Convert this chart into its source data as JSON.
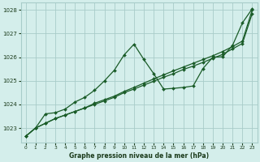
{
  "title": "Graphe pression niveau de la mer (hPa)",
  "background_color": "#d4eeeb",
  "grid_color": "#a8ccc9",
  "line_color": "#1a5c28",
  "marker_color": "#1a5c28",
  "xlim": [
    -0.5,
    23.5
  ],
  "ylim": [
    1022.4,
    1028.3
  ],
  "yticks": [
    1023,
    1024,
    1025,
    1026,
    1027,
    1028
  ],
  "xticks": [
    0,
    1,
    2,
    3,
    4,
    5,
    6,
    7,
    8,
    9,
    10,
    11,
    12,
    13,
    14,
    15,
    16,
    17,
    18,
    19,
    20,
    21,
    22,
    23
  ],
  "series1_x": [
    0,
    1,
    2,
    3,
    4,
    5,
    6,
    7,
    8,
    9,
    10,
    11,
    12,
    13,
    14,
    15,
    16,
    17,
    18,
    19,
    20,
    21,
    22,
    23
  ],
  "series1_y": [
    1022.65,
    1023.0,
    1023.2,
    1023.4,
    1023.55,
    1023.7,
    1023.85,
    1024.0,
    1024.15,
    1024.3,
    1024.5,
    1024.65,
    1024.82,
    1024.98,
    1025.15,
    1025.3,
    1025.48,
    1025.62,
    1025.78,
    1025.95,
    1026.12,
    1026.35,
    1026.58,
    1027.85
  ],
  "series2_x": [
    0,
    1,
    2,
    3,
    4,
    5,
    6,
    7,
    8,
    9,
    10,
    11,
    12,
    13,
    14,
    15,
    16,
    17,
    18,
    19,
    20,
    21,
    22,
    23
  ],
  "series2_y": [
    1022.65,
    1023.0,
    1023.2,
    1023.4,
    1023.55,
    1023.7,
    1023.85,
    1024.05,
    1024.2,
    1024.35,
    1024.55,
    1024.72,
    1024.9,
    1025.08,
    1025.25,
    1025.42,
    1025.58,
    1025.74,
    1025.9,
    1026.06,
    1026.24,
    1026.45,
    1026.68,
    1028.0
  ],
  "series3_x": [
    0,
    1,
    2,
    3,
    4,
    5,
    6,
    7,
    8,
    9,
    10,
    11,
    12,
    13,
    14,
    15,
    16,
    17,
    18,
    19,
    20,
    21,
    22,
    23
  ],
  "series3_y": [
    1022.65,
    1023.0,
    1023.6,
    1023.65,
    1023.8,
    1024.1,
    1024.3,
    1024.6,
    1025.0,
    1025.45,
    1026.1,
    1026.55,
    1025.9,
    1025.3,
    1024.65,
    1024.68,
    1024.72,
    1024.78,
    1025.52,
    1026.0,
    1026.02,
    1026.5,
    1027.45,
    1028.05
  ]
}
